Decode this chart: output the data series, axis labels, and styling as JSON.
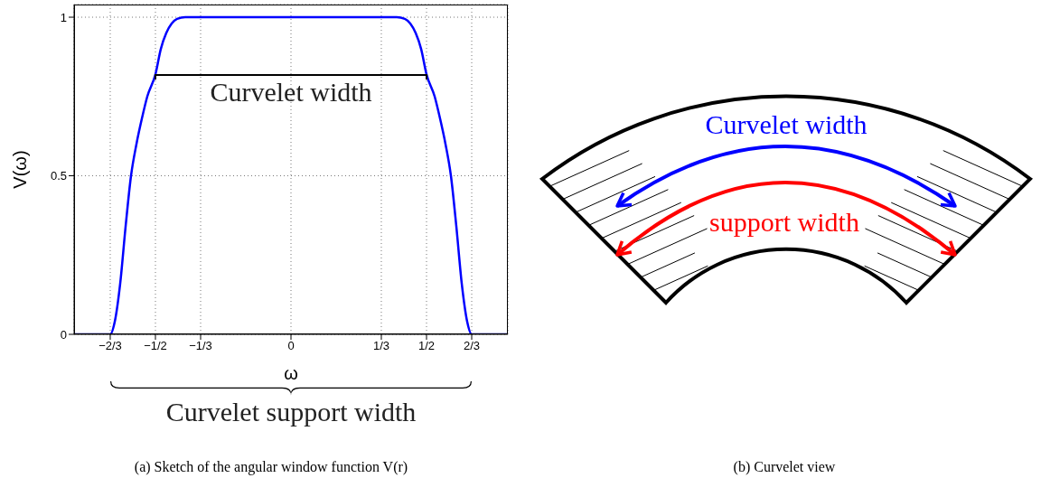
{
  "chart_data": [
    {
      "type": "line",
      "xlabel": "ω",
      "ylabel": "V(ω)",
      "x": [
        -0.8,
        -0.6667,
        -0.65,
        -0.63,
        -0.61,
        -0.59,
        -0.57,
        -0.55,
        -0.53,
        -0.5,
        -0.48,
        -0.46,
        -0.44,
        -0.42,
        -0.39,
        0,
        0.39,
        0.42,
        0.44,
        0.46,
        0.48,
        0.5,
        0.53,
        0.55,
        0.57,
        0.59,
        0.61,
        0.63,
        0.65,
        0.6667,
        0.8
      ],
      "series": [
        {
          "color": "#0000ff",
          "values": [
            0,
            0,
            0.04,
            0.16,
            0.34,
            0.5,
            0.6,
            0.68,
            0.75,
            0.82,
            0.9,
            0.95,
            0.98,
            0.995,
            1,
            1,
            1,
            0.995,
            0.98,
            0.95,
            0.9,
            0.82,
            0.75,
            0.68,
            0.6,
            0.5,
            0.34,
            0.16,
            0.04,
            0,
            0
          ]
        }
      ],
      "xlim": [
        -0.8,
        0.8
      ],
      "xticks": [
        {
          "value": -0.6667,
          "label": "−2/3"
        },
        {
          "value": -0.5,
          "label": "−1/2"
        },
        {
          "value": -0.3333,
          "label": "−1/3"
        },
        0,
        {
          "value": 0.3333,
          "label": "1/3"
        },
        {
          "value": 0.5,
          "label": "1/2"
        },
        {
          "value": 0.6667,
          "label": "2/3"
        }
      ],
      "ylim": [
        0,
        1.04
      ],
      "yticks": [
        0,
        0.5,
        1
      ],
      "grid": true,
      "marker": "none",
      "line_style": "solid",
      "annotations": [
        "Curvelet width",
        "Curvelet support width",
        "(a) Sketch of the angular window function V(r)"
      ]
    },
    {
      "type": "other",
      "annotations": [
        "Curvelet width",
        "support width",
        "(b) Curvelet view"
      ]
    }
  ]
}
